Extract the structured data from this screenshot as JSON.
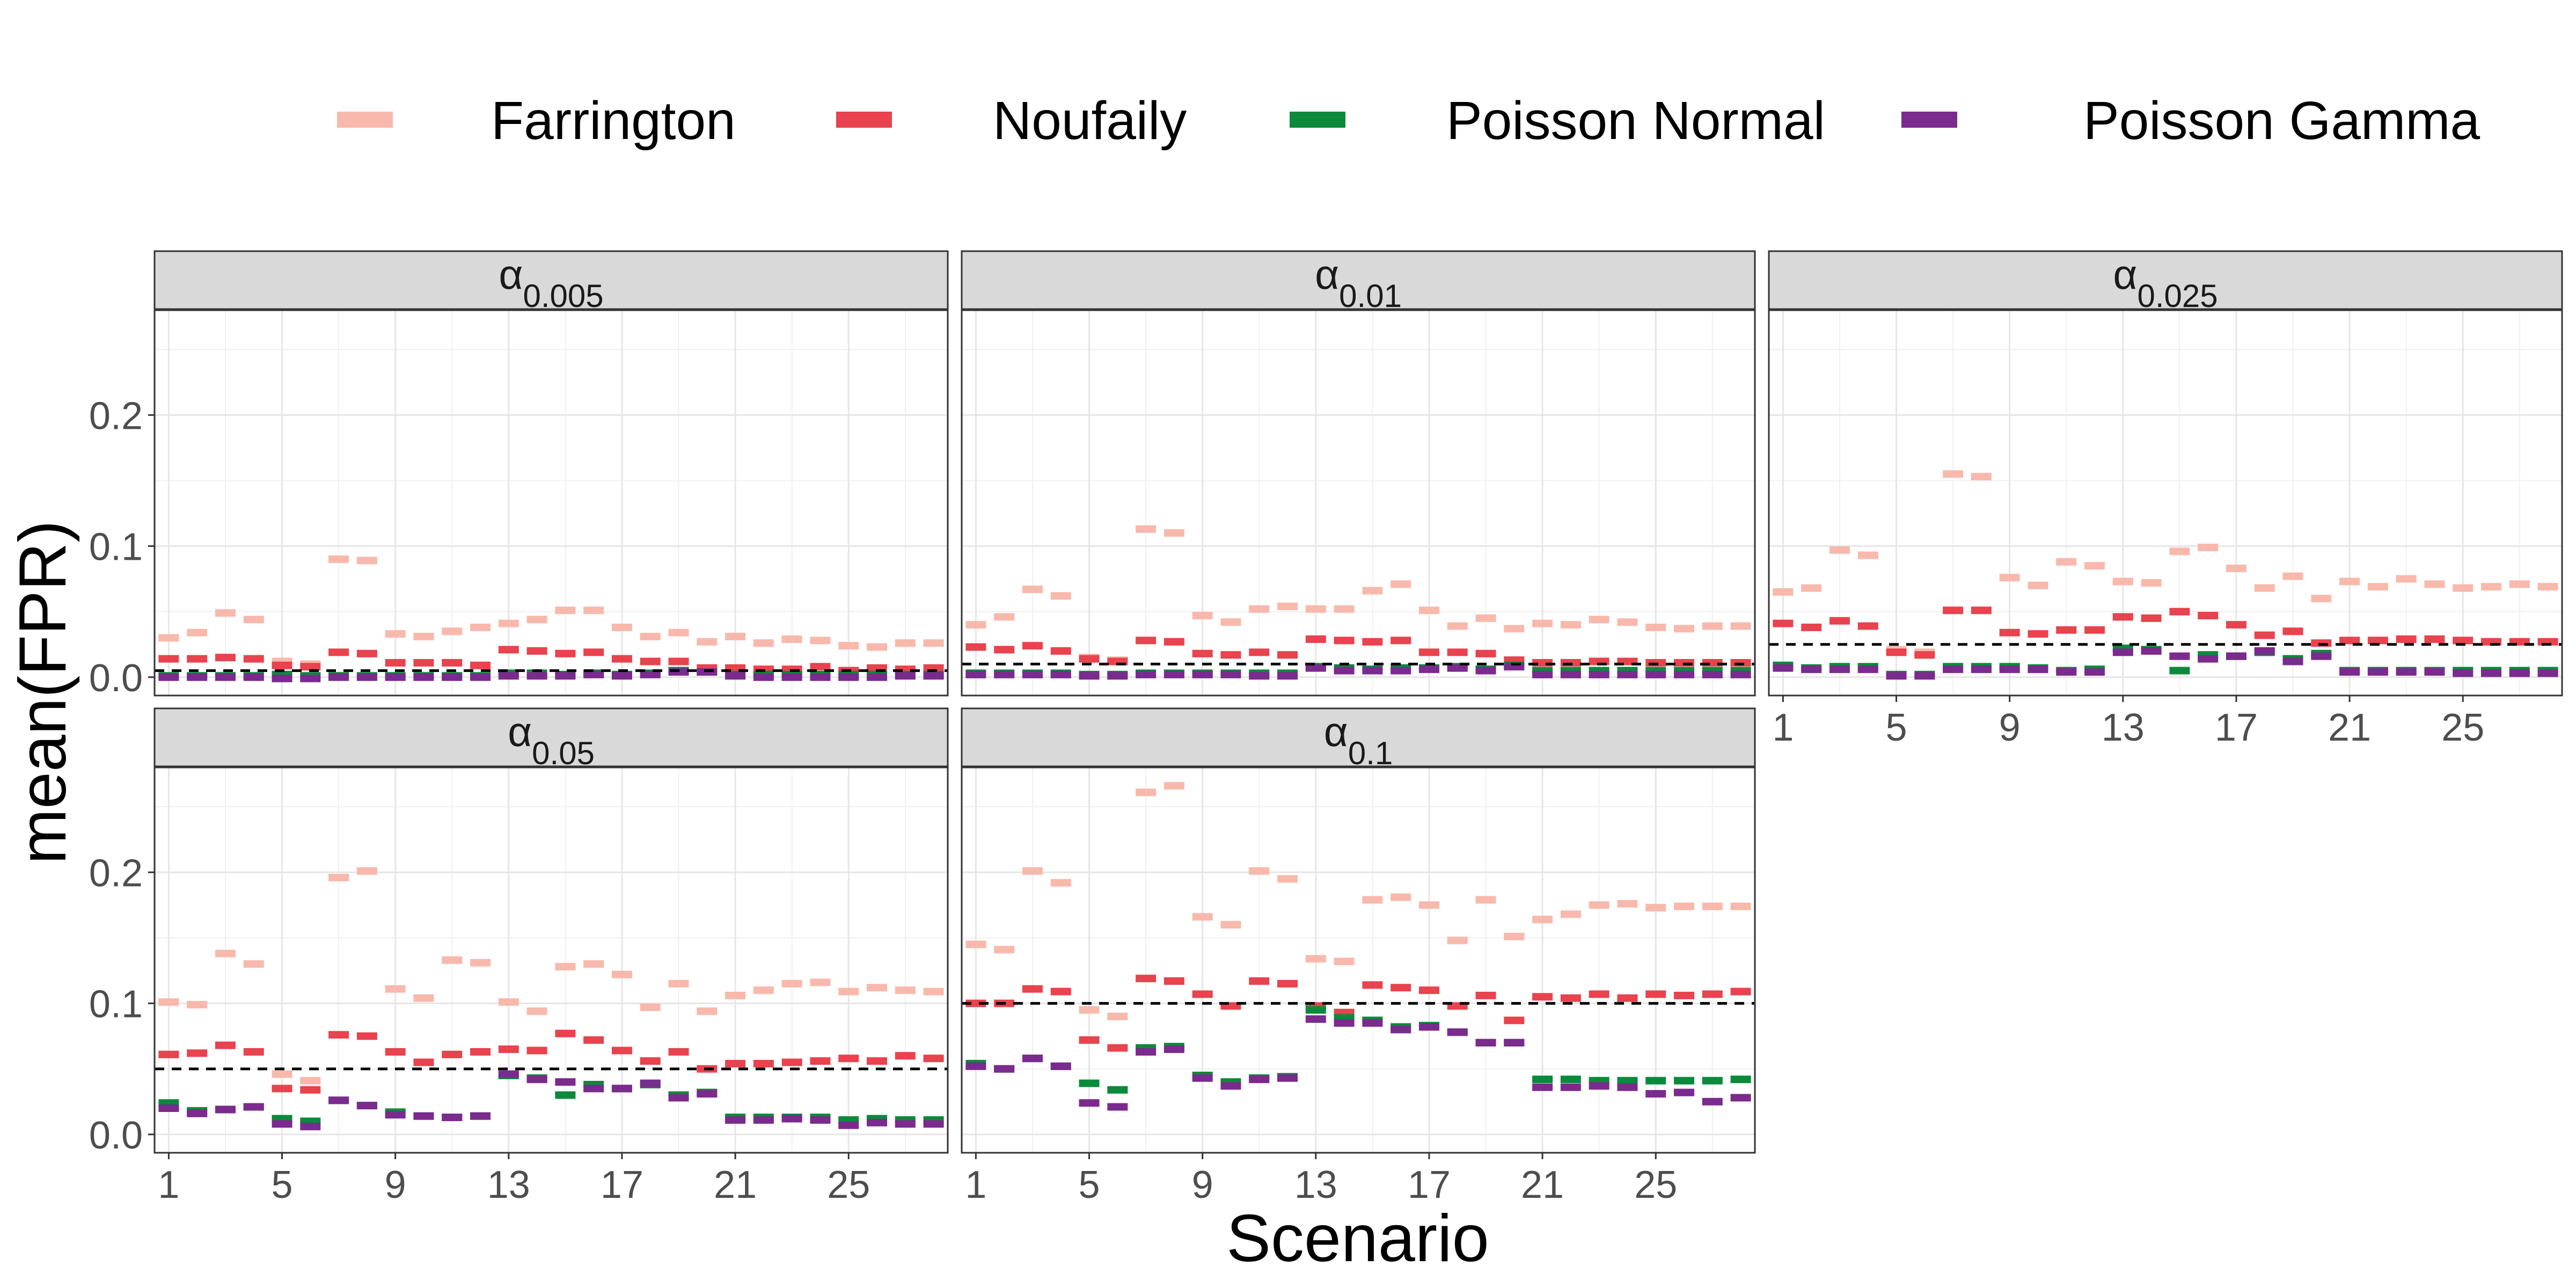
{
  "chart_data": {
    "type": "scatter",
    "marker": "horizontal-dash",
    "xlabel": "Scenario",
    "ylabel": "mean(FPR)",
    "xlim": [
      0.5,
      28.5
    ],
    "ylim": [
      -0.014,
      0.28
    ],
    "x_ticks": [
      1,
      5,
      9,
      13,
      17,
      21,
      25
    ],
    "y_ticks": [
      0.0,
      0.1,
      0.2
    ],
    "y_tick_labels": [
      "0.0",
      "0.1",
      "0.2"
    ],
    "grid": true,
    "legend_position": "top",
    "series": [
      {
        "name": "Farrington",
        "color": "#F8B9AC"
      },
      {
        "name": "Noufaily",
        "color": "#E8434E"
      },
      {
        "name": "Poisson Normal",
        "color": "#0A8A3A"
      },
      {
        "name": "Poisson Gamma",
        "color": "#7B2A8E"
      }
    ],
    "panels": [
      {
        "label_base": "α",
        "label_sub": "0.005",
        "reference_line": 0.005,
        "values": {
          "Farrington": [
            0.03,
            0.034,
            0.049,
            0.044,
            0.012,
            0.01,
            0.09,
            0.089,
            0.033,
            0.031,
            0.035,
            0.038,
            0.041,
            0.044,
            0.051,
            0.051,
            0.038,
            0.031,
            0.034,
            0.027,
            0.031,
            0.026,
            0.029,
            0.028,
            0.024,
            0.023,
            0.026,
            0.026
          ],
          "Noufaily": [
            0.014,
            0.014,
            0.015,
            0.014,
            0.009,
            0.008,
            0.019,
            0.018,
            0.011,
            0.011,
            0.011,
            0.009,
            0.021,
            0.02,
            0.018,
            0.019,
            0.014,
            0.012,
            0.012,
            0.007,
            0.007,
            0.006,
            0.006,
            0.008,
            0.005,
            0.007,
            0.006,
            0.007
          ],
          "Poisson Normal": [
            0.001,
            0.001,
            0.001,
            0.001,
            0.002,
            0.001,
            0.001,
            0.001,
            0.001,
            0.001,
            0.001,
            0.001,
            0.003,
            0.003,
            0.002,
            0.003,
            0.002,
            0.003,
            0.005,
            0.004,
            0.002,
            0.002,
            0.002,
            0.002,
            0.002,
            0.002,
            0.002,
            0.002
          ],
          "Poisson Gamma": [
            0.0,
            0.0,
            0.0,
            0.0,
            -0.001,
            -0.001,
            0.0,
            0.0,
            0.0,
            0.0,
            0.0,
            0.0,
            0.001,
            0.001,
            0.001,
            0.002,
            0.001,
            0.002,
            0.004,
            0.004,
            0.001,
            0.0,
            0.0,
            0.0,
            0.0,
            0.0,
            0.001,
            0.001
          ]
        }
      },
      {
        "label_base": "α",
        "label_sub": "0.01",
        "reference_line": 0.01,
        "values": {
          "Farrington": [
            0.04,
            0.046,
            0.067,
            0.062,
            0.015,
            0.013,
            0.113,
            0.11,
            0.047,
            0.042,
            0.052,
            0.054,
            0.052,
            0.052,
            0.066,
            0.071,
            0.051,
            0.039,
            0.045,
            0.037,
            0.041,
            0.04,
            0.044,
            0.042,
            0.038,
            0.037,
            0.039,
            0.039
          ],
          "Noufaily": [
            0.023,
            0.021,
            0.024,
            0.02,
            0.014,
            0.012,
            0.028,
            0.027,
            0.018,
            0.017,
            0.019,
            0.017,
            0.029,
            0.028,
            0.027,
            0.028,
            0.019,
            0.019,
            0.018,
            0.013,
            0.011,
            0.011,
            0.012,
            0.012,
            0.011,
            0.011,
            0.011,
            0.011
          ],
          "Poisson Normal": [
            0.003,
            0.003,
            0.003,
            0.003,
            0.002,
            0.002,
            0.003,
            0.003,
            0.003,
            0.003,
            0.003,
            0.003,
            0.008,
            0.007,
            0.006,
            0.007,
            0.007,
            0.008,
            0.006,
            0.009,
            0.005,
            0.005,
            0.005,
            0.005,
            0.005,
            0.005,
            0.005,
            0.005
          ],
          "Poisson Gamma": [
            0.002,
            0.002,
            0.002,
            0.002,
            0.001,
            0.001,
            0.002,
            0.002,
            0.002,
            0.002,
            0.001,
            0.001,
            0.007,
            0.005,
            0.005,
            0.005,
            0.006,
            0.007,
            0.005,
            0.008,
            0.002,
            0.002,
            0.002,
            0.002,
            0.002,
            0.002,
            0.002,
            0.002
          ]
        }
      },
      {
        "label_base": "α",
        "label_sub": "0.025",
        "reference_line": 0.025,
        "values": {
          "Farrington": [
            0.065,
            0.068,
            0.097,
            0.093,
            0.021,
            0.019,
            0.155,
            0.153,
            0.076,
            0.07,
            0.088,
            0.085,
            0.073,
            0.072,
            0.096,
            0.099,
            0.083,
            0.068,
            0.077,
            0.06,
            0.073,
            0.069,
            0.075,
            0.071,
            0.068,
            0.069,
            0.071,
            0.069
          ],
          "Noufaily": [
            0.041,
            0.038,
            0.043,
            0.039,
            0.019,
            0.017,
            0.051,
            0.051,
            0.034,
            0.033,
            0.036,
            0.036,
            0.046,
            0.045,
            0.05,
            0.047,
            0.04,
            0.032,
            0.035,
            0.026,
            0.028,
            0.028,
            0.029,
            0.029,
            0.028,
            0.027,
            0.027,
            0.027
          ],
          "Poisson Normal": [
            0.009,
            0.007,
            0.008,
            0.008,
            0.002,
            0.002,
            0.008,
            0.008,
            0.008,
            0.007,
            0.005,
            0.006,
            0.022,
            0.021,
            0.005,
            0.017,
            0.016,
            0.019,
            0.014,
            0.018,
            0.005,
            0.005,
            0.005,
            0.005,
            0.005,
            0.005,
            0.005,
            0.005
          ],
          "Poisson Gamma": [
            0.007,
            0.006,
            0.006,
            0.006,
            0.001,
            0.001,
            0.006,
            0.006,
            0.006,
            0.006,
            0.004,
            0.004,
            0.019,
            0.02,
            0.016,
            0.014,
            0.016,
            0.02,
            0.012,
            0.016,
            0.004,
            0.004,
            0.004,
            0.004,
            0.003,
            0.003,
            0.003,
            0.003
          ]
        }
      },
      {
        "label_base": "α",
        "label_sub": "0.05",
        "reference_line": 0.05,
        "values": {
          "Farrington": [
            0.101,
            0.099,
            0.138,
            0.13,
            0.046,
            0.041,
            0.196,
            0.201,
            0.111,
            0.104,
            0.133,
            0.131,
            0.101,
            0.094,
            0.128,
            0.13,
            0.122,
            0.097,
            0.115,
            0.094,
            0.106,
            0.11,
            0.115,
            0.116,
            0.109,
            0.112,
            0.11,
            0.109
          ],
          "Noufaily": [
            0.061,
            0.062,
            0.068,
            0.063,
            0.035,
            0.034,
            0.076,
            0.075,
            0.063,
            0.055,
            0.061,
            0.063,
            0.065,
            0.064,
            0.077,
            0.072,
            0.064,
            0.056,
            0.063,
            0.05,
            0.054,
            0.054,
            0.055,
            0.056,
            0.058,
            0.056,
            0.06,
            0.058
          ],
          "Poisson Normal": [
            0.024,
            0.018,
            0.019,
            0.021,
            0.012,
            0.01,
            0.026,
            0.022,
            0.017,
            0.014,
            0.013,
            0.014,
            0.045,
            0.043,
            0.03,
            0.038,
            0.035,
            0.038,
            0.03,
            0.032,
            0.013,
            0.013,
            0.013,
            0.013,
            0.011,
            0.012,
            0.011,
            0.011
          ],
          "Poisson Gamma": [
            0.02,
            0.016,
            0.019,
            0.021,
            0.008,
            0.006,
            0.026,
            0.022,
            0.015,
            0.014,
            0.013,
            0.014,
            0.046,
            0.042,
            0.04,
            0.035,
            0.035,
            0.039,
            0.028,
            0.031,
            0.011,
            0.011,
            0.012,
            0.011,
            0.007,
            0.009,
            0.008,
            0.008
          ]
        }
      },
      {
        "label_base": "α",
        "label_sub": "0.1",
        "reference_line": 0.1,
        "values": {
          "Farrington": [
            0.145,
            0.141,
            0.201,
            0.192,
            0.095,
            0.09,
            0.261,
            0.266,
            0.166,
            0.16,
            0.201,
            0.195,
            0.134,
            0.132,
            0.179,
            0.181,
            0.175,
            0.148,
            0.179,
            0.151,
            0.164,
            0.168,
            0.175,
            0.176,
            0.173,
            0.174,
            0.174,
            0.174
          ],
          "Noufaily": [
            0.1,
            0.1,
            0.111,
            0.109,
            0.072,
            0.066,
            0.119,
            0.117,
            0.107,
            0.098,
            0.117,
            0.115,
            0.098,
            0.093,
            0.114,
            0.112,
            0.11,
            0.098,
            0.106,
            0.087,
            0.105,
            0.104,
            0.107,
            0.104,
            0.107,
            0.106,
            0.107,
            0.109
          ],
          "Poisson Normal": [
            0.054,
            0.05,
            0.058,
            0.052,
            0.039,
            0.034,
            0.066,
            0.067,
            0.045,
            0.04,
            0.043,
            0.044,
            0.095,
            0.089,
            0.087,
            0.082,
            0.083,
            0.078,
            0.07,
            0.07,
            0.042,
            0.042,
            0.041,
            0.041,
            0.041,
            0.041,
            0.041,
            0.042
          ],
          "Poisson Gamma": [
            0.052,
            0.05,
            0.058,
            0.052,
            0.024,
            0.021,
            0.063,
            0.065,
            0.043,
            0.037,
            0.042,
            0.043,
            0.088,
            0.085,
            0.085,
            0.08,
            0.082,
            0.078,
            0.07,
            0.07,
            0.036,
            0.036,
            0.037,
            0.036,
            0.031,
            0.032,
            0.025,
            0.028
          ]
        }
      }
    ]
  }
}
